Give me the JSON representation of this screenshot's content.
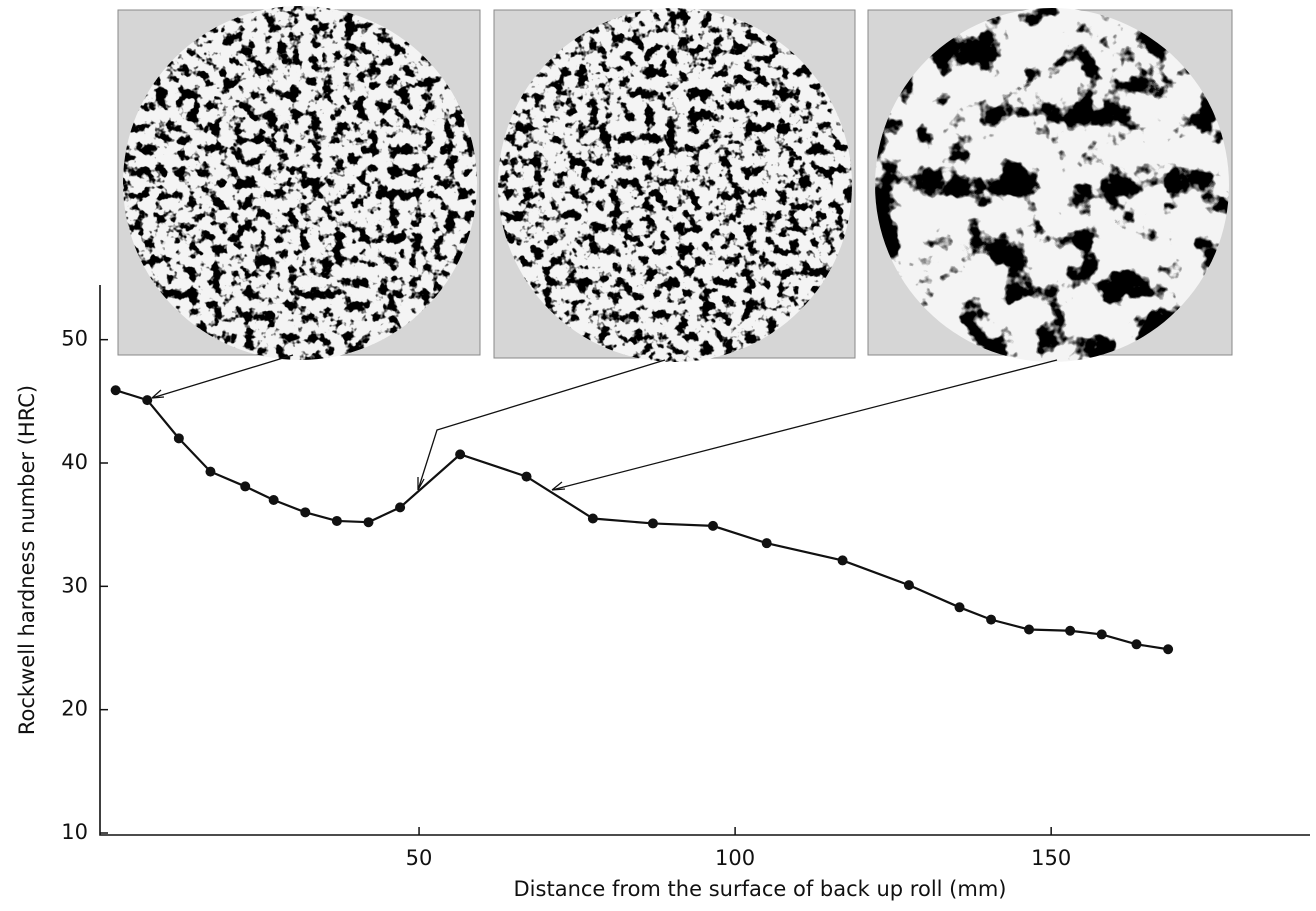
{
  "chart_data": {
    "type": "line",
    "x_label": "Distance  from the surface of back up roll   (mm)",
    "y_label": "Rockwell hardness number   (HRC)",
    "x": [
      2,
      7,
      12,
      17,
      22.5,
      27,
      32,
      37,
      42,
      47,
      56.5,
      67,
      77.5,
      87,
      96.5,
      105,
      117,
      127.5,
      135.5,
      140.5,
      146.5,
      153,
      158,
      163.5,
      168.5
    ],
    "values": [
      45.9,
      45.1,
      42.0,
      39.3,
      38.1,
      37.0,
      36.0,
      35.3,
      35.2,
      36.4,
      40.7,
      38.9,
      35.5,
      35.1,
      34.9,
      33.5,
      32.1,
      30.1,
      28.3,
      27.3,
      26.5,
      26.4,
      26.1,
      25.3,
      24.9
    ],
    "color": "#111111",
    "xlim": [
      0,
      190
    ],
    "xticks": [
      50,
      100,
      150
    ],
    "ylim": [
      10,
      55
    ],
    "yticks": [
      10,
      20,
      30,
      40,
      50
    ]
  }
}
